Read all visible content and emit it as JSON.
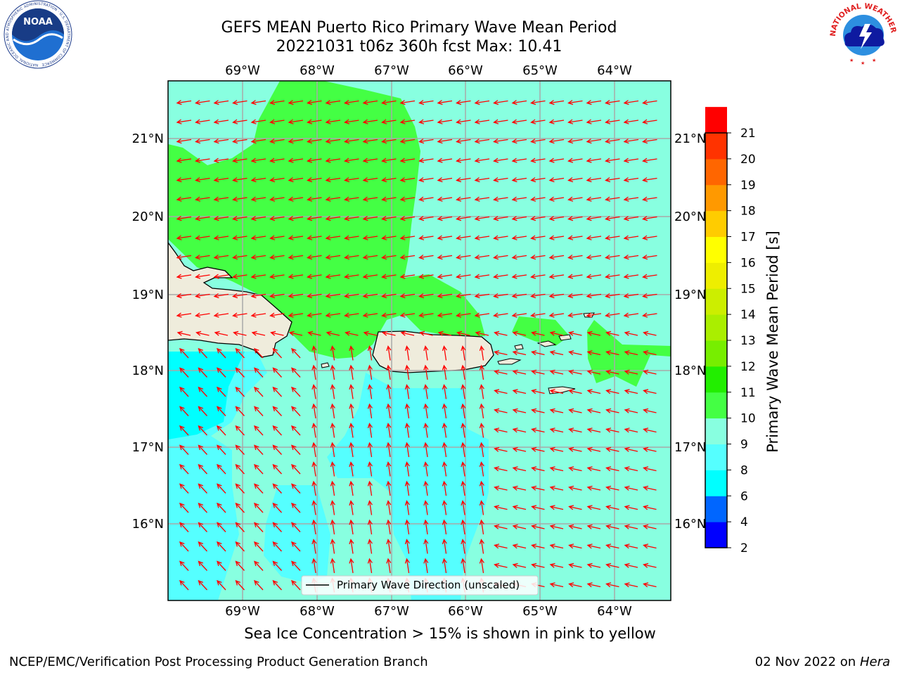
{
  "header": {
    "title_line1": "GEFS MEAN Puerto Rico Primary Wave Mean Period",
    "title_line2": "20221031 t06z 360h fcst   Max: 10.41"
  },
  "map": {
    "lon_ticks": [
      "69°W",
      "68°W",
      "67°W",
      "66°W",
      "65°W",
      "64°W"
    ],
    "lat_ticks": [
      "21°N",
      "20°N",
      "19°N",
      "18°N",
      "17°N",
      "16°N"
    ],
    "legend_label": "Primary Wave Direction (unscaled)",
    "arrow_color": "#ff0000",
    "land_color": "#efecdc"
  },
  "colorbar": {
    "label": "Primary Wave Mean Period [s]",
    "ticks": [
      "2",
      "4",
      "6",
      "8",
      "9",
      "10",
      "11",
      "12",
      "13",
      "14",
      "15",
      "16",
      "17",
      "18",
      "19",
      "20",
      "21"
    ],
    "colors": [
      "#0000ff",
      "#0066ff",
      "#00ffff",
      "#55ffff",
      "#88ffe0",
      "#44ff44",
      "#22ee00",
      "#77ee00",
      "#aaee00",
      "#ccee00",
      "#eeee00",
      "#ffff00",
      "#ffcc00",
      "#ff9900",
      "#ff6600",
      "#ff3300",
      "#ff0000"
    ]
  },
  "footer": {
    "caption": "Sea Ice Concentration > 15% is shown in pink to yellow",
    "credit_left": "NCEP/EMC/Verification Post Processing Product Generation Branch",
    "credit_date": "02 Nov 2022 on",
    "credit_host": "Hera"
  },
  "logos": {
    "noaa": "NOAA",
    "noaa_ring": "NATIONAL OCEANIC AND ATMOSPHERIC ADMINISTRATION · U.S. DEPARTMENT OF COMMERCE",
    "nws_ring": "NATIONAL WEATHER SERVICE"
  }
}
